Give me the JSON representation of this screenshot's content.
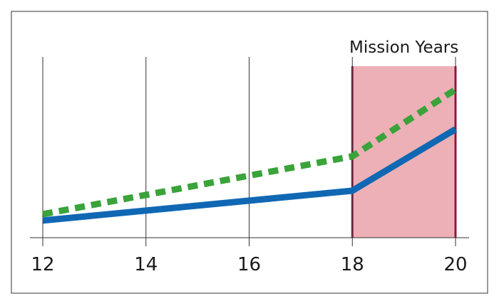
{
  "chart_data": {
    "type": "line",
    "x": [
      12,
      14,
      16,
      18,
      20
    ],
    "xlim": [
      12,
      20
    ],
    "ylim": [
      0,
      10
    ],
    "grid": "vertical",
    "tick_labels": [
      "12",
      "14",
      "16",
      "18",
      "20"
    ],
    "series": [
      {
        "style": "solid",
        "color": "#1068b4",
        "points": [
          [
            12,
            0.95
          ],
          [
            18,
            2.6
          ],
          [
            20,
            6.0
          ]
        ]
      },
      {
        "style": "dashed",
        "color": "#3aa33a",
        "points": [
          [
            12,
            1.3
          ],
          [
            18,
            4.5
          ],
          [
            20,
            8.2
          ]
        ]
      }
    ],
    "shaded_region": {
      "label": "Mission Years",
      "x_start": 18,
      "x_end": 20,
      "fill": "#ecb0b6",
      "edge": "#b0154a"
    }
  }
}
